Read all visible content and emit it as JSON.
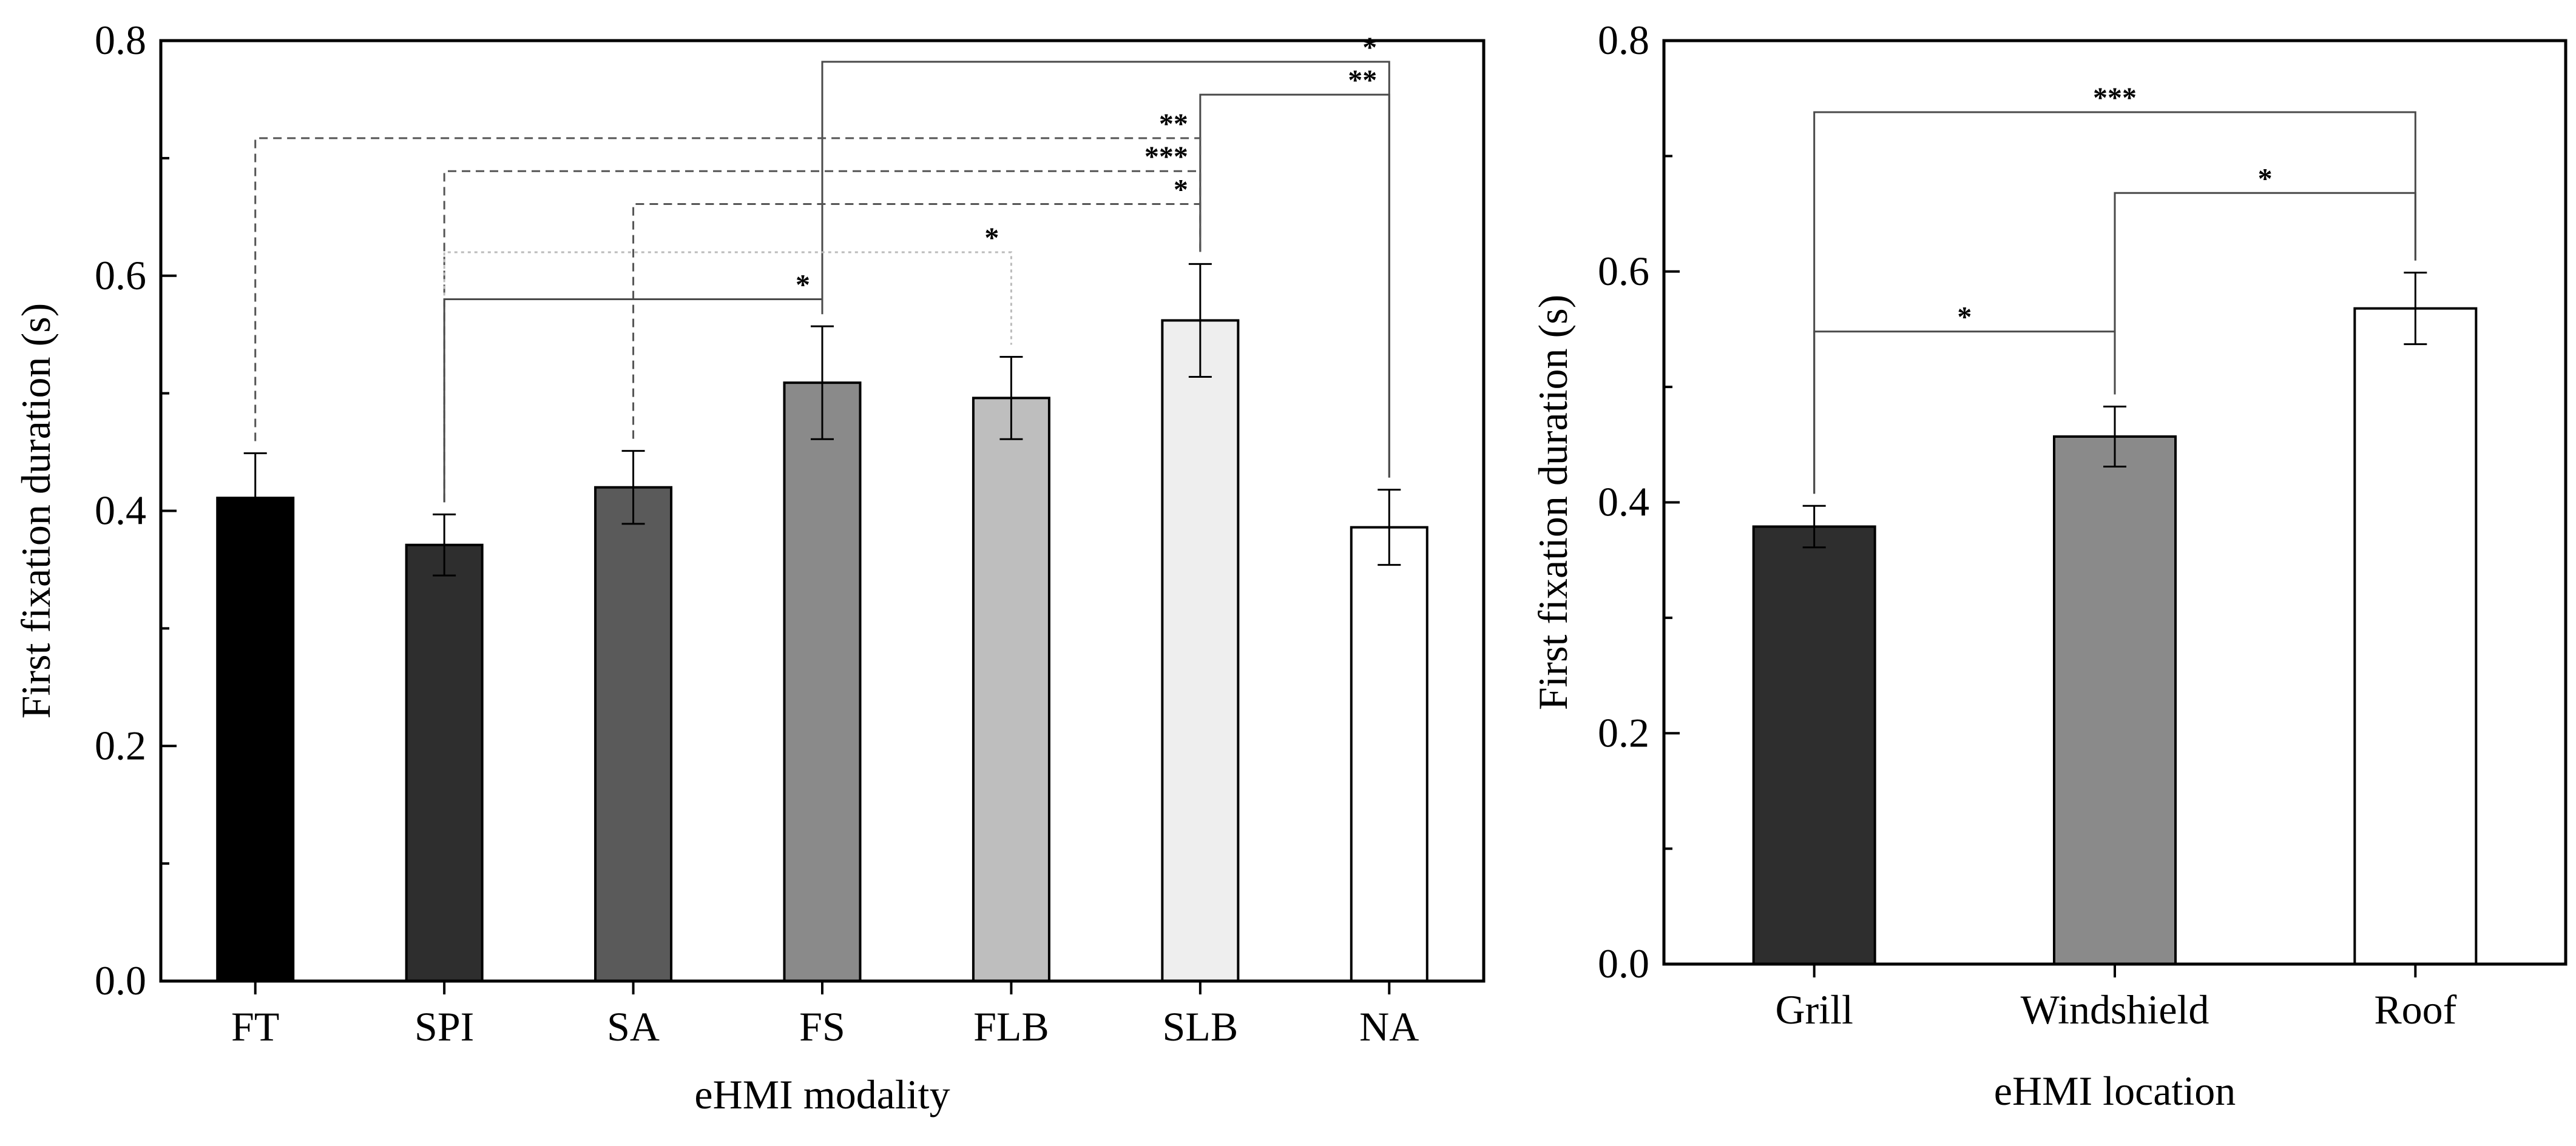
{
  "chart_data": [
    {
      "type": "bar",
      "xlabel": "eHMI modality",
      "ylabel": "First fixation duration (s)",
      "ylim": [
        0,
        0.8
      ],
      "yticks": [
        "0.0",
        "0.2",
        "0.4",
        "0.6",
        "0.8"
      ],
      "categories": [
        "FT",
        "SPI",
        "SA",
        "FS",
        "FLB",
        "SLB",
        "NA"
      ],
      "values": [
        0.411,
        0.371,
        0.42,
        0.509,
        0.496,
        0.562,
        0.386
      ],
      "errors": [
        0.038,
        0.026,
        0.031,
        0.048,
        0.035,
        0.048,
        0.032
      ],
      "colors": [
        "#000000",
        "#2e2e2e",
        "#5a5a5a",
        "#8a8a8a",
        "#bebebe",
        "#eeeeee",
        "#ffffff"
      ],
      "significance": [
        {
          "from": "FS",
          "to": "NA",
          "level": 0.782,
          "label": "*",
          "style": "solid"
        },
        {
          "from": "SLB",
          "to": "NA",
          "level": 0.754,
          "label": "**",
          "style": "solid"
        },
        {
          "from": "FT",
          "to": "SLB",
          "level": 0.717,
          "label": "**",
          "style": "dashed"
        },
        {
          "from": "SPI",
          "to": "SLB",
          "level": 0.689,
          "label": "***",
          "style": "dashed"
        },
        {
          "from": "SA",
          "to": "SLB",
          "level": 0.661,
          "label": "*",
          "style": "dashed"
        },
        {
          "from": "SPI",
          "to": "FLB",
          "level": 0.62,
          "label": "*",
          "style": "dotted"
        },
        {
          "from": "SPI",
          "to": "FS",
          "level": 0.58,
          "label": "*",
          "style": "solid"
        }
      ]
    },
    {
      "type": "bar",
      "xlabel": "eHMI location",
      "ylabel": "First fixation duration (s)",
      "ylim": [
        0,
        0.8
      ],
      "yticks": [
        "0.0",
        "0.2",
        "0.4",
        "0.6",
        "0.8"
      ],
      "categories": [
        "Grill",
        "Windshield",
        "Roof"
      ],
      "values": [
        0.379,
        0.457,
        0.568
      ],
      "errors": [
        0.018,
        0.026,
        0.031
      ],
      "colors": [
        "#2e2e2e",
        "#8a8a8a",
        "#ffffff"
      ],
      "significance": [
        {
          "from": "Grill",
          "to": "Roof",
          "level": 0.738,
          "label": "***",
          "style": "solid"
        },
        {
          "from": "Windshield",
          "to": "Roof",
          "level": 0.668,
          "label": "*",
          "style": "solid"
        },
        {
          "from": "Grill",
          "to": "Windshield",
          "level": 0.548,
          "label": "*",
          "style": "solid"
        }
      ]
    }
  ]
}
